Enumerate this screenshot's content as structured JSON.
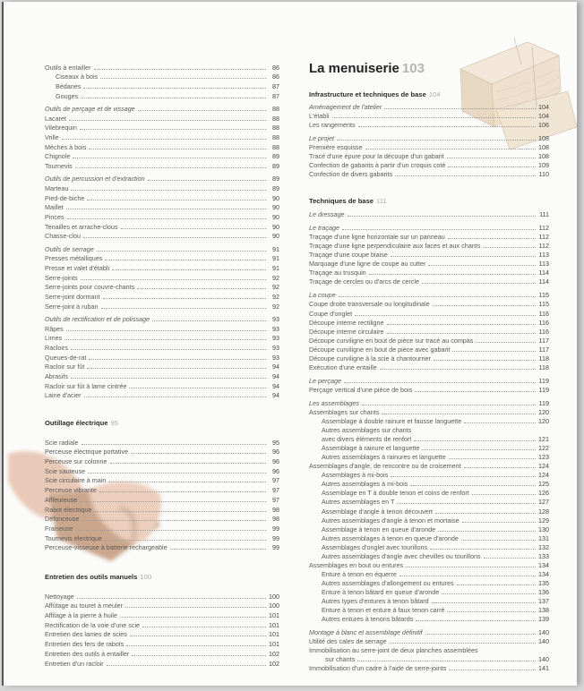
{
  "left_column": {
    "tools_list": [
      [
        {
          "text": "Outils à entailler",
          "page": "86"
        },
        {
          "text": "Ciseaux à bois",
          "page": "86",
          "indent": 1
        },
        {
          "text": "Bédanes",
          "page": "87",
          "indent": 1
        },
        {
          "text": "Gouges",
          "page": "87",
          "indent": 1
        }
      ],
      [
        {
          "text": "Outils de perçage et de vissage",
          "page": "88",
          "italic": true
        },
        {
          "text": "Lacaret",
          "page": "88"
        },
        {
          "text": "Vilebrequin",
          "page": "88"
        },
        {
          "text": "Vrille",
          "page": "88"
        },
        {
          "text": "Mèches à bois",
          "page": "88"
        },
        {
          "text": "Chignole",
          "page": "89"
        },
        {
          "text": "Tournevis",
          "page": "89"
        }
      ],
      [
        {
          "text": "Outils de percussion et d'extraction",
          "page": "89",
          "italic": true
        },
        {
          "text": "Marteau",
          "page": "89"
        },
        {
          "text": "Pied-de-biche",
          "page": "90"
        },
        {
          "text": "Maillet",
          "page": "90"
        },
        {
          "text": "Pinces",
          "page": "90"
        },
        {
          "text": "Tenailles et arrache-clous",
          "page": "90"
        },
        {
          "text": "Chasse-clou",
          "page": "90"
        }
      ],
      [
        {
          "text": "Outils de serrage",
          "page": "91",
          "italic": true
        },
        {
          "text": "Presses métalliques",
          "page": "91"
        },
        {
          "text": "Presse et valet d'établi",
          "page": "91"
        },
        {
          "text": "Serre-joints",
          "page": "92"
        },
        {
          "text": "Serre-joints pour couvre-chants",
          "page": "92"
        },
        {
          "text": "Serre-joint dormant",
          "page": "92"
        },
        {
          "text": "Serre-joint à ruban",
          "page": "92"
        }
      ],
      [
        {
          "text": "Outils de rectification et de polissage",
          "page": "93",
          "italic": true
        },
        {
          "text": "Râpes",
          "page": "93"
        },
        {
          "text": "Limes",
          "page": "93"
        },
        {
          "text": "Racloirs",
          "page": "93"
        },
        {
          "text": "Queues-de-rat",
          "page": "93"
        },
        {
          "text": "Racloir sur fût",
          "page": "94"
        },
        {
          "text": "Abrasifs",
          "page": "94"
        },
        {
          "text": "Racloir sur fût à lame cintrée",
          "page": "94"
        },
        {
          "text": "Laine d'acier",
          "page": "94"
        }
      ]
    ],
    "electric_heading": {
      "title": "Outillage électrique",
      "page": "95"
    },
    "electric_list": [
      [
        {
          "text": "Scie radiale",
          "page": "95"
        },
        {
          "text": "Perceuse électrique portative",
          "page": "96"
        },
        {
          "text": "Perceuse sur colonne",
          "page": "96"
        },
        {
          "text": "Scie sauteuse",
          "page": "96"
        },
        {
          "text": "Scie circulaire à main",
          "page": "97"
        },
        {
          "text": "Perceuse vibrante",
          "page": "97"
        },
        {
          "text": "Affleureuse",
          "page": "97"
        },
        {
          "text": "Rabot électrique",
          "page": "98"
        },
        {
          "text": "Défonceuse",
          "page": "98"
        },
        {
          "text": "Fraiseuse",
          "page": "99"
        },
        {
          "text": "Tournevis électrique",
          "page": "99"
        },
        {
          "text": "Perceuse-visseuse à batterie rechargeable",
          "page": "99"
        }
      ]
    ],
    "maintenance_heading": {
      "title": "Entretien des outils manuels",
      "page": "100"
    },
    "maintenance_list": [
      [
        {
          "text": "Nettoyage",
          "page": "100"
        },
        {
          "text": "Affûtage au touret à meuler",
          "page": "100"
        },
        {
          "text": "Affilage à la pierre à huile",
          "page": "101"
        },
        {
          "text": "Rectification de la voie d'une scie",
          "page": "101"
        },
        {
          "text": "Entretien des lames de scies",
          "page": "101"
        },
        {
          "text": "Entretien des fers de rabots",
          "page": "101"
        },
        {
          "text": "Entretien des outils à entailler",
          "page": "102"
        },
        {
          "text": "Entretien d'un racloir",
          "page": "102"
        }
      ]
    ]
  },
  "right_column": {
    "chapter_title": {
      "title": "La menuiserie",
      "page": "103"
    },
    "infra_heading": {
      "title": "Infrastructure et techniques de base",
      "page": "104"
    },
    "infra_list": [
      [
        {
          "text": "Aménagement de l'atelier",
          "page": "104",
          "italic": true
        },
        {
          "text": "L'établi",
          "page": "104"
        },
        {
          "text": "Les rangements",
          "page": "106"
        }
      ],
      [
        {
          "text": "Le projet",
          "page": "108",
          "italic": true
        },
        {
          "text": "Première esquisse",
          "page": "108"
        },
        {
          "text": "Tracé d'une épure pour la découpe d'un gabarit",
          "page": "108"
        },
        {
          "text": "Confection de gabarits à partir d'un croquis coté",
          "page": "109"
        },
        {
          "text": "Confection de divers gabarits",
          "page": "110"
        }
      ]
    ],
    "basics_heading": {
      "title": "Techniques de base",
      "page": "111"
    },
    "basics_list": [
      [
        {
          "text": "Le dressage",
          "page": "111",
          "italic": true
        }
      ],
      [
        {
          "text": "Le traçage",
          "page": "112",
          "italic": true
        },
        {
          "text": "Traçage d'une ligne horizontale sur un panneau",
          "page": "112"
        },
        {
          "text": "Traçage d'une ligne perpendiculaire aux faces et aux chants",
          "page": "112"
        },
        {
          "text": "Traçage d'une coupe biaise",
          "page": "113"
        },
        {
          "text": "Marquage d'une ligne de coupe au cutter",
          "page": "113"
        },
        {
          "text": "Traçage au trusquin",
          "page": "114"
        },
        {
          "text": "Traçage de cercles ou d'arcs de cercle",
          "page": "114"
        }
      ],
      [
        {
          "text": "La coupe",
          "page": "115",
          "italic": true
        },
        {
          "text": "Coupe droite transversale ou longitudinale",
          "page": "115"
        },
        {
          "text": "Coupe d'onglet",
          "page": "116"
        },
        {
          "text": "Découpe interne rectiligne",
          "page": "116"
        },
        {
          "text": "Découpe interne circulaire",
          "page": "116"
        },
        {
          "text": "Découpe curviligne en bout de pièce sur tracé au compas",
          "page": "117"
        },
        {
          "text": "Découpe curviligne en bout de pièce avec gabarit",
          "page": "117"
        },
        {
          "text": "Découpe curviligne à la scie à chantourner",
          "page": "118"
        },
        {
          "text": "Exécution d'une entaille",
          "page": "118"
        }
      ],
      [
        {
          "text": "Le perçage",
          "page": "119",
          "italic": true
        },
        {
          "text": "Perçage vertical d'une pièce de bois",
          "page": "119"
        }
      ],
      [
        {
          "text": "Les assemblages",
          "page": "119",
          "italic": true
        },
        {
          "text": "Assemblages sur chants",
          "page": "120"
        },
        {
          "text": "Assemblage à double rainure et fausse languette",
          "page": "120",
          "indent": 1
        },
        {
          "text": "Autres assemblages sur chants",
          "page": "",
          "indent": 1
        },
        {
          "text": "avec divers éléments de renfort",
          "page": "121",
          "indent": 1
        },
        {
          "text": "Assemblage à rainure et languette",
          "page": "122",
          "indent": 1
        },
        {
          "text": "Autres assemblages à rainures et languette",
          "page": "123",
          "indent": 1
        },
        {
          "text": "Assemblages d'angle, de rencontre ou de croisement",
          "page": "124"
        },
        {
          "text": "Assemblages à mi-bois",
          "page": "124",
          "indent": 1
        },
        {
          "text": "Autres assemblages à mi-bois",
          "page": "125",
          "indent": 1
        },
        {
          "text": "Assemblage en T à double tenon et coins de renfort",
          "page": "126",
          "indent": 1
        },
        {
          "text": "Autres assemblages en T",
          "page": "127",
          "indent": 1
        },
        {
          "text": "Assemblage d'angle à tenon découvert",
          "page": "128",
          "indent": 1
        },
        {
          "text": "Autres assemblages d'angle à tenon et mortaise",
          "page": "129",
          "indent": 1
        },
        {
          "text": "Assemblage à tenon en queue d'aronde",
          "page": "130",
          "indent": 1
        },
        {
          "text": "Autres assemblages à tenon en queue d'aronde",
          "page": "131",
          "indent": 1
        },
        {
          "text": "Assemblages d'onglet avec tourillons",
          "page": "132",
          "indent": 1
        },
        {
          "text": "Autres assemblages d'angle avec chevilles ou tourillons",
          "page": "133",
          "indent": 1
        },
        {
          "text": "Assemblages en bout ou entures",
          "page": "134"
        },
        {
          "text": "Enture à tenon en équerre",
          "page": "134",
          "indent": 1
        },
        {
          "text": "Autres assemblages d'allongement ou entures",
          "page": "135",
          "indent": 1
        },
        {
          "text": "Enture à tenon bâtard en queue d'aronde",
          "page": "136",
          "indent": 1
        },
        {
          "text": "Autres types d'entures à tenon bâtard",
          "page": "137",
          "indent": 1
        },
        {
          "text": "Enture à tenon et enture à faux tenon carré",
          "page": "138",
          "indent": 1
        },
        {
          "text": "Autres entures à tenons bâtards",
          "page": "139",
          "indent": 1
        }
      ],
      [
        {
          "text": "Montage à blanc et assemblage définitif",
          "page": "140",
          "italic": true
        },
        {
          "text": "Utilité des cales de serrage",
          "page": "140"
        },
        {
          "text": "Immobilisation au serre-joint de deux planches assemblées",
          "page": ""
        },
        {
          "text": "sur chants",
          "page": "140",
          "indent": 2
        },
        {
          "text": "Immobilisation d'un cadre à l'aide de serre-joints",
          "page": "141"
        }
      ]
    ]
  },
  "illustrations": {
    "top_right": "wood-joint-illustration",
    "bottom_left": "hands-sanding-photo"
  },
  "colors": {
    "text": "#5a5a5a",
    "heading": "#2a2a2a",
    "page_number_light": "#aaaaaa"
  }
}
